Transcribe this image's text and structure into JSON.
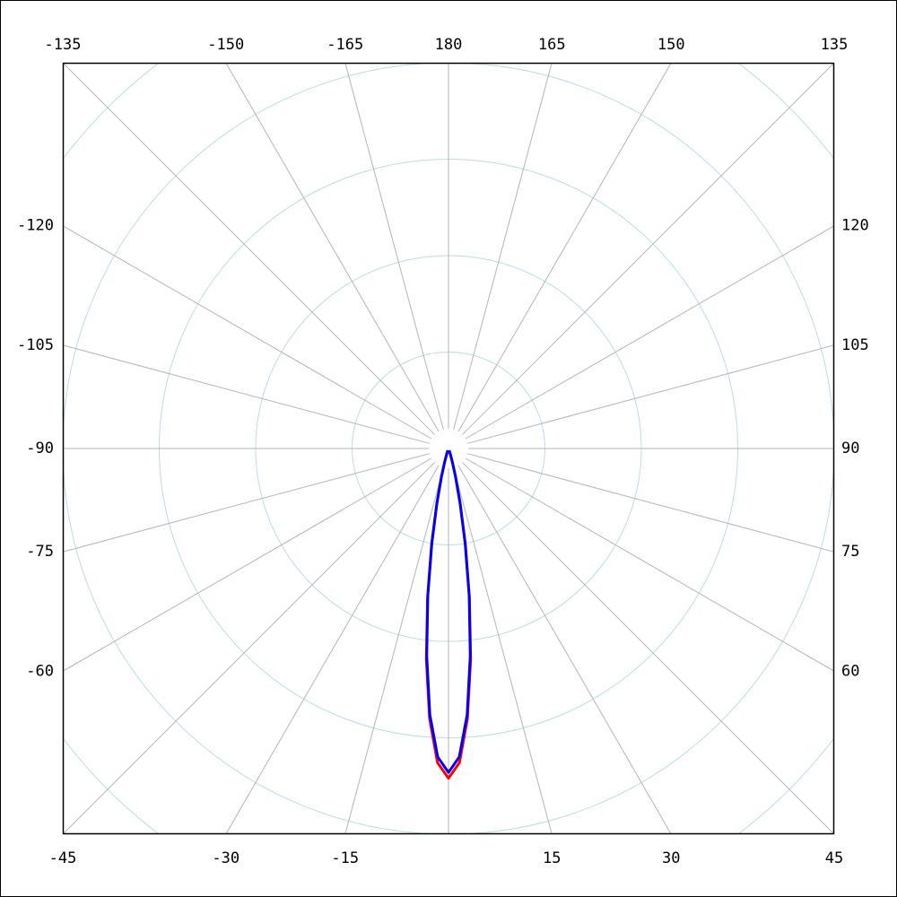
{
  "chart_data": {
    "type": "polar",
    "theta_zero": "bottom",
    "rlim": [
      0,
      4
    ],
    "rticks": [
      1,
      2,
      3,
      4,
      5
    ],
    "thetaticks": [
      {
        "value": 0,
        "label": null
      },
      15,
      30,
      45,
      60,
      75,
      90,
      105,
      120,
      135,
      150,
      165,
      180,
      -165,
      -150,
      -135,
      -120,
      -105,
      -90,
      -75,
      -60,
      -45,
      -30,
      -15
    ],
    "grid": true,
    "theta": [
      -20,
      -18,
      -16,
      -14,
      -12,
      -10,
      -8,
      -6,
      -4,
      -2,
      0,
      2,
      4,
      6,
      8,
      10,
      12,
      14,
      16,
      18,
      20
    ],
    "series": [
      {
        "color": "#ff0000",
        "values": [
          0.02,
          0.06,
          0.14,
          0.31,
          0.58,
          1.01,
          1.56,
          2.2,
          2.81,
          3.26,
          3.42,
          3.26,
          2.81,
          2.2,
          1.56,
          1.01,
          0.58,
          0.31,
          0.14,
          0.06,
          0.02
        ]
      },
      {
        "color": "#0000ff",
        "values": [
          0.02,
          0.06,
          0.14,
          0.3,
          0.57,
          0.99,
          1.54,
          2.16,
          2.77,
          3.2,
          3.36,
          3.2,
          2.77,
          2.16,
          1.54,
          0.99,
          0.57,
          0.3,
          0.14,
          0.06,
          0.02
        ]
      }
    ]
  }
}
